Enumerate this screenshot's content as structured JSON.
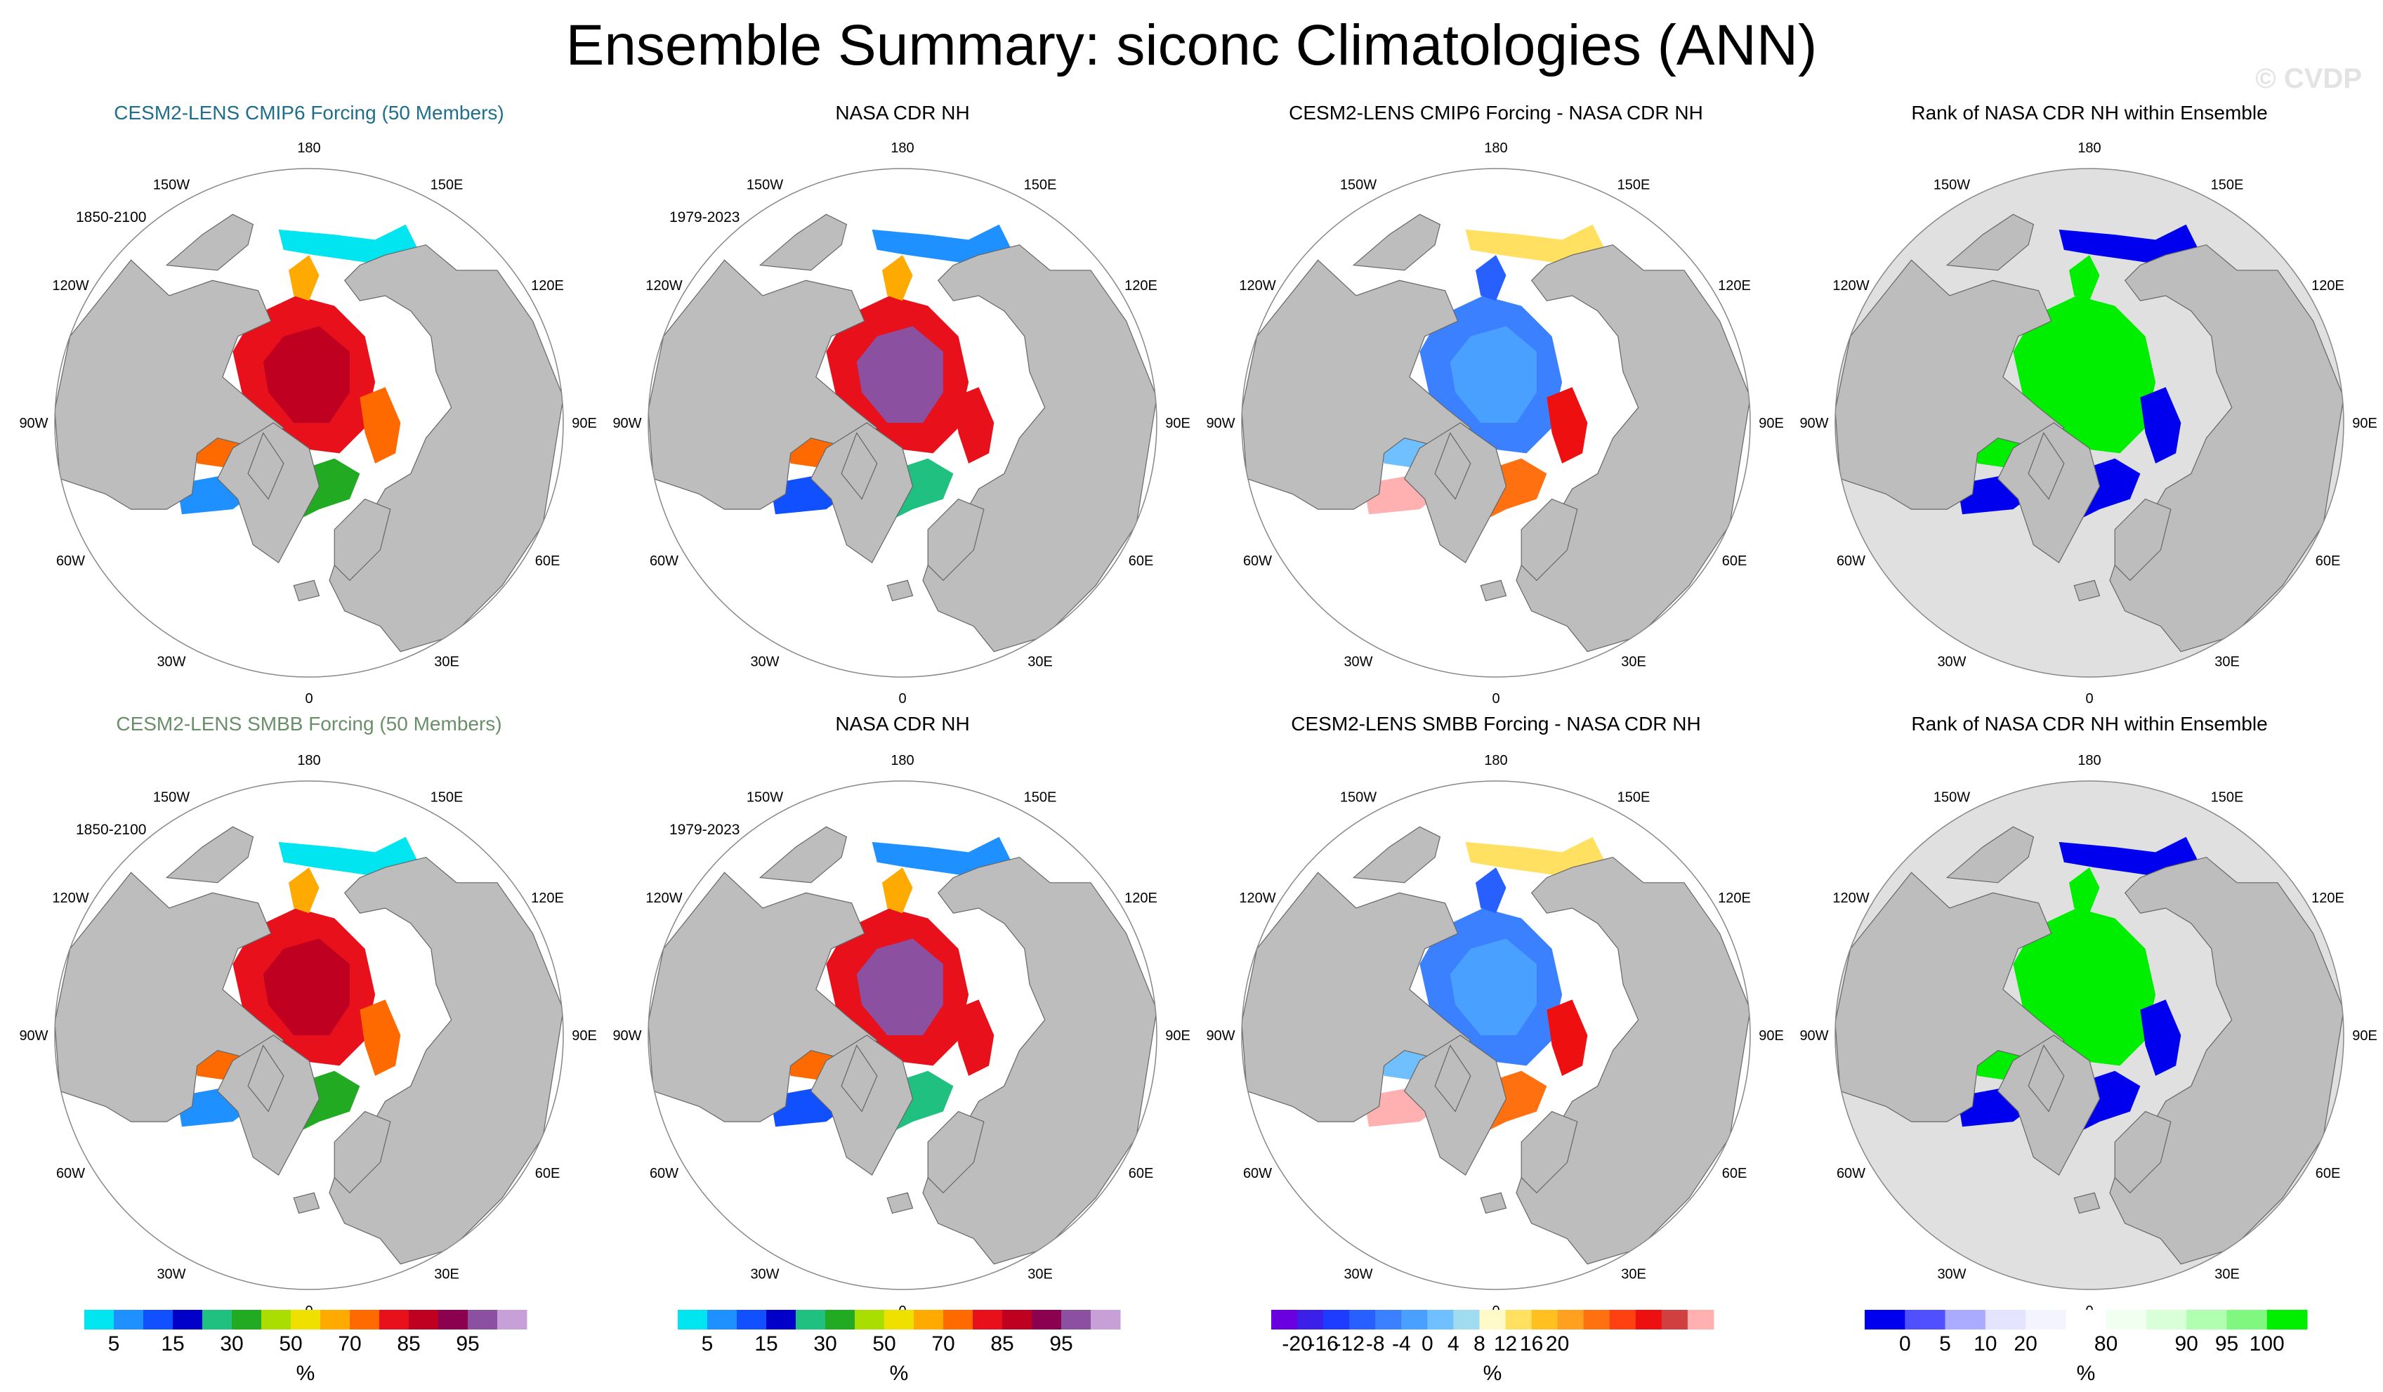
{
  "title": "Ensemble Summary: siconc Climatologies (ANN)",
  "watermark": "© CVDP",
  "colors": {
    "land": "#bdbdbd",
    "ocean": "#ffffff",
    "rank_bg": "#e0e0e0",
    "title_cmip6": "#1f6e8c",
    "title_smbb": "#6a8f6a"
  },
  "lon_labels": [
    "180",
    "150E",
    "120E",
    "90E",
    "60E",
    "30E",
    "0",
    "30W",
    "60W",
    "90W",
    "120W",
    "150W"
  ],
  "rows": [
    {
      "panels": [
        {
          "title": "CESM2-LENS CMIP6 Forcing (50 Members)",
          "years": "1850-2100",
          "kind": "ens"
        },
        {
          "title": "NASA CDR NH",
          "years": "1979-2023",
          "kind": "obs"
        },
        {
          "title": "CESM2-LENS CMIP6 Forcing - NASA CDR NH",
          "years": "",
          "kind": "diff"
        },
        {
          "title": "Rank of NASA CDR NH within Ensemble",
          "years": "",
          "kind": "rank"
        }
      ]
    },
    {
      "panels": [
        {
          "title": "CESM2-LENS SMBB Forcing (50 Members)",
          "years": "1850-2100",
          "kind": "ens"
        },
        {
          "title": "NASA CDR NH",
          "years": "1979-2023",
          "kind": "obs"
        },
        {
          "title": "CESM2-LENS SMBB Forcing - NASA CDR NH",
          "years": "",
          "kind": "diff"
        },
        {
          "title": "Rank of NASA CDR NH within Ensemble",
          "years": "",
          "kind": "rank"
        }
      ]
    }
  ],
  "colorbars": [
    {
      "unit": "%",
      "colors": [
        "#00e5f0",
        "#1e90ff",
        "#1050ff",
        "#0000c8",
        "#20c080",
        "#22aa22",
        "#aadd00",
        "#f0e000",
        "#ffaa00",
        "#ff6a00",
        "#e8101a",
        "#c00020",
        "#8c0050",
        "#8c50a0",
        "#c8a0d8"
      ],
      "ticks": [
        "5",
        "15",
        "30",
        "50",
        "70",
        "85",
        "95"
      ],
      "tick_after_box": [
        0,
        2,
        4,
        6,
        8,
        10,
        12
      ]
    },
    {
      "unit": "%",
      "colors": [
        "#00e5f0",
        "#1e90ff",
        "#1050ff",
        "#0000c8",
        "#20c080",
        "#22aa22",
        "#aadd00",
        "#f0e000",
        "#ffaa00",
        "#ff6a00",
        "#e8101a",
        "#c00020",
        "#8c0050",
        "#8c50a0",
        "#c8a0d8"
      ],
      "ticks": [
        "5",
        "15",
        "30",
        "50",
        "70",
        "85",
        "95"
      ],
      "tick_after_box": [
        0,
        2,
        4,
        6,
        8,
        10,
        12
      ]
    },
    {
      "unit": "%",
      "colors": [
        "#6a00e0",
        "#3a20e8",
        "#1e3cff",
        "#2860ff",
        "#3a80ff",
        "#4aa0ff",
        "#70c0ff",
        "#a0dcf0",
        "#fffac8",
        "#ffe060",
        "#ffc020",
        "#ffa020",
        "#ff7010",
        "#ff4010",
        "#ee1010",
        "#d04040",
        "#ffb0b0"
      ],
      "ticks": [
        "-20",
        "-16",
        "-12",
        "-8",
        "-4",
        "0",
        "4",
        "8",
        "12",
        "16",
        "20"
      ],
      "tick_after_box": [
        0,
        1,
        2,
        3,
        4,
        5,
        6,
        7,
        8,
        9,
        10
      ]
    },
    {
      "unit": "%",
      "colors": [
        "#0000ee",
        "#5050ff",
        "#aaaaff",
        "#e4e4ff",
        "#f4f4ff",
        "#ffffff",
        "#f0fff0",
        "#d8ffd8",
        "#b0ffb0",
        "#80f880",
        "#00ee00"
      ],
      "ticks": [
        "0",
        "5",
        "10",
        "20",
        "80",
        "90",
        "95",
        "100"
      ],
      "tick_after_box": [
        0,
        1,
        2,
        3,
        5,
        7,
        8,
        9
      ]
    }
  ]
}
